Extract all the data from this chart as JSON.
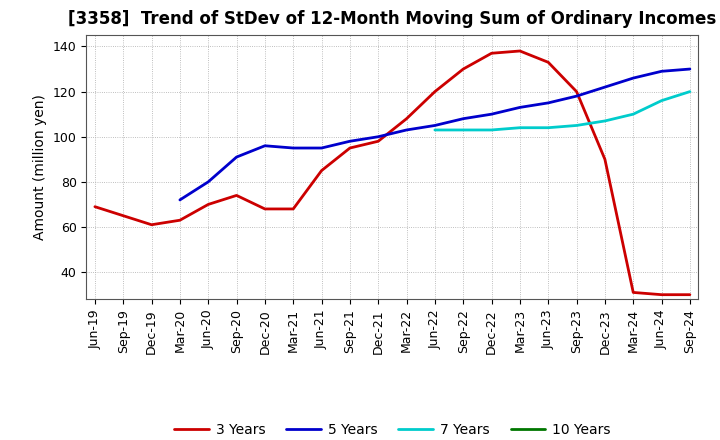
{
  "title": "[3358]  Trend of StDev of 12-Month Moving Sum of Ordinary Incomes",
  "ylabel": "Amount (million yen)",
  "ylim": [
    28,
    145
  ],
  "yticks": [
    40,
    60,
    80,
    100,
    120,
    140
  ],
  "background_color": "#ffffff",
  "grid_color": "#aaaaaa",
  "title_fontsize": 12,
  "label_fontsize": 10,
  "tick_fontsize": 9,
  "x_labels": [
    "Jun-19",
    "Sep-19",
    "Dec-19",
    "Mar-20",
    "Jun-20",
    "Sep-20",
    "Dec-20",
    "Mar-21",
    "Jun-21",
    "Sep-21",
    "Dec-21",
    "Mar-22",
    "Jun-22",
    "Sep-22",
    "Dec-22",
    "Mar-23",
    "Jun-23",
    "Sep-23",
    "Dec-23",
    "Mar-24",
    "Jun-24",
    "Sep-24"
  ],
  "series": [
    {
      "name": "3 Years",
      "color": "#cc0000",
      "data": [
        69,
        65,
        61,
        63,
        70,
        74,
        68,
        68,
        85,
        95,
        98,
        108,
        120,
        130,
        137,
        138,
        133,
        120,
        90,
        31,
        30,
        30
      ]
    },
    {
      "name": "5 Years",
      "color": "#0000cc",
      "data": [
        null,
        null,
        null,
        72,
        80,
        91,
        96,
        95,
        95,
        98,
        100,
        103,
        105,
        108,
        110,
        113,
        115,
        118,
        122,
        126,
        129,
        130
      ]
    },
    {
      "name": "7 Years",
      "color": "#00cccc",
      "data": [
        null,
        null,
        null,
        null,
        null,
        null,
        null,
        null,
        null,
        null,
        null,
        null,
        103,
        103,
        103,
        104,
        104,
        105,
        107,
        110,
        116,
        120
      ]
    },
    {
      "name": "10 Years",
      "color": "#007700",
      "data": [
        null,
        null,
        null,
        null,
        null,
        null,
        null,
        null,
        null,
        null,
        null,
        null,
        null,
        null,
        null,
        null,
        null,
        null,
        null,
        null,
        null,
        null
      ]
    }
  ]
}
